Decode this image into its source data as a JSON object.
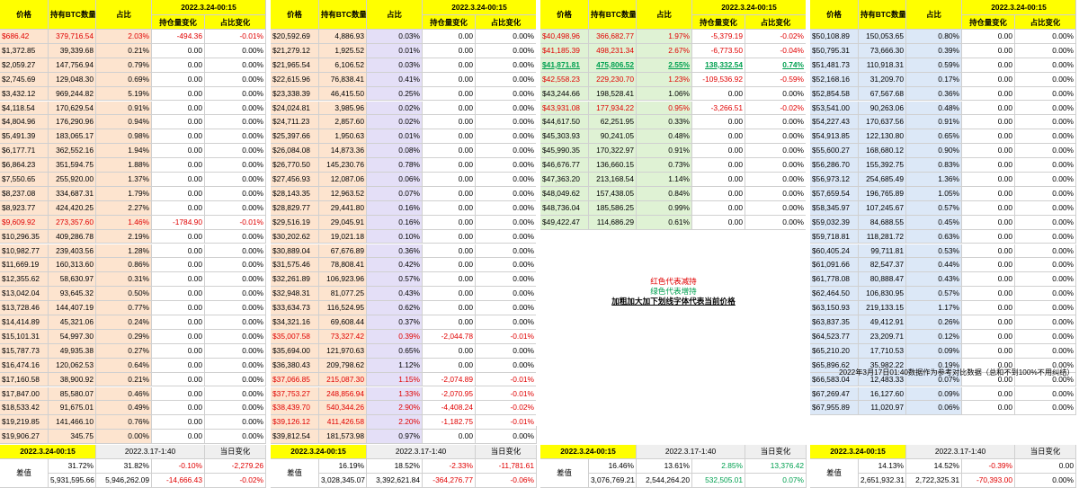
{
  "colors": {
    "header_yellow": "#ffff00",
    "price_orange": "#fde4cf",
    "ratio_purple": "#e4dff7",
    "price_green": "#dff2d4",
    "price_blue": "#dce8f7",
    "footer_gray": "#efefef",
    "text_red": "#e00000",
    "text_green": "#00a050"
  },
  "headers": {
    "price": "价格",
    "btc": "持有BTC数量",
    "ratio": "占比",
    "date": "2022.3.24-00:15",
    "chg_hold": "持仓量变化",
    "chg_ratio": "占比变化"
  },
  "blocks": [
    {
      "rows": [
        [
          "$686.42",
          "379,716.54",
          "2.03%",
          "-494.36",
          "-0.01%",
          "red"
        ],
        [
          "$1,372.85",
          "39,339.68",
          "0.21%",
          "0.00",
          "0.00%",
          ""
        ],
        [
          "$2,059.27",
          "147,756.94",
          "0.79%",
          "0.00",
          "0.00%",
          ""
        ],
        [
          "$2,745.69",
          "129,048.30",
          "0.69%",
          "0.00",
          "0.00%",
          ""
        ],
        [
          "$3,432.12",
          "969,244.82",
          "5.19%",
          "0.00",
          "0.00%",
          ""
        ],
        [
          "$4,118.54",
          "170,629.54",
          "0.91%",
          "0.00",
          "0.00%",
          ""
        ],
        [
          "$4,804.96",
          "176,290.96",
          "0.94%",
          "0.00",
          "0.00%",
          ""
        ],
        [
          "$5,491.39",
          "183,065.17",
          "0.98%",
          "0.00",
          "0.00%",
          ""
        ],
        [
          "$6,177.71",
          "362,552.16",
          "1.94%",
          "0.00",
          "0.00%",
          ""
        ],
        [
          "$6,864.23",
          "351,594.75",
          "1.88%",
          "0.00",
          "0.00%",
          ""
        ],
        [
          "$7,550.65",
          "255,920.00",
          "1.37%",
          "0.00",
          "0.00%",
          ""
        ],
        [
          "$8,237.08",
          "334,687.31",
          "1.79%",
          "0.00",
          "0.00%",
          ""
        ],
        [
          "$8,923.77",
          "424,420.25",
          "2.27%",
          "0.00",
          "0.00%",
          ""
        ],
        [
          "$9,609.92",
          "273,357.60",
          "1.46%",
          "-1784.90",
          "-0.01%",
          "red"
        ],
        [
          "$10,296.35",
          "409,286.78",
          "2.19%",
          "0.00",
          "0.00%",
          ""
        ],
        [
          "$10,982.77",
          "239,403.56",
          "1.28%",
          "0.00",
          "0.00%",
          ""
        ],
        [
          "$11,669.19",
          "160,313.60",
          "0.86%",
          "0.00",
          "0.00%",
          ""
        ],
        [
          "$12,355.62",
          "58,630.97",
          "0.31%",
          "0.00",
          "0.00%",
          ""
        ],
        [
          "$13,042.04",
          "93,645.32",
          "0.50%",
          "0.00",
          "0.00%",
          ""
        ],
        [
          "$13,728.46",
          "144,407.19",
          "0.77%",
          "0.00",
          "0.00%",
          ""
        ],
        [
          "$14,414.89",
          "45,321.06",
          "0.24%",
          "0.00",
          "0.00%",
          ""
        ],
        [
          "$15,101.31",
          "54,997.30",
          "0.29%",
          "0.00",
          "0.00%",
          ""
        ],
        [
          "$15,787.73",
          "49,935.38",
          "0.27%",
          "0.00",
          "0.00%",
          ""
        ],
        [
          "$16,474.16",
          "120,062.53",
          "0.64%",
          "0.00",
          "0.00%",
          ""
        ],
        [
          "$17,160.58",
          "38,900.92",
          "0.21%",
          "0.00",
          "0.00%",
          ""
        ],
        [
          "$17,847.00",
          "85,580.07",
          "0.46%",
          "0.00",
          "0.00%",
          ""
        ],
        [
          "$18,533.42",
          "91,675.01",
          "0.49%",
          "0.00",
          "0.00%",
          ""
        ],
        [
          "$19,219.85",
          "141,466.10",
          "0.76%",
          "0.00",
          "0.00%",
          ""
        ],
        [
          "$19,906.27",
          "345.75",
          "0.00%",
          "0.00",
          "0.00%",
          ""
        ]
      ],
      "footer": {
        "date1": "2022.3.24-00:15",
        "date2": "2022.3.17-1:40",
        "daily": "当日变化",
        "diff": "差值",
        "r1a": "31.72%",
        "r1b": "31.82%",
        "r1c": "-0.10%",
        "r1d": "-2,279.26",
        "r2a": "5,931,595.66",
        "r2b": "5,946,262.09",
        "r2c": "-14,666.43",
        "r2d": "-0.02%"
      }
    },
    {
      "rows": [
        [
          "$20,592.69",
          "4,886.93",
          "0.03%",
          "0.00",
          "0.00%",
          ""
        ],
        [
          "$21,279.12",
          "1,925.52",
          "0.01%",
          "0.00",
          "0.00%",
          ""
        ],
        [
          "$21,965.54",
          "6,106.52",
          "0.03%",
          "0.00",
          "0.00%",
          ""
        ],
        [
          "$22,615.96",
          "76,838.41",
          "0.41%",
          "0.00",
          "0.00%",
          ""
        ],
        [
          "$23,338.39",
          "46,415.50",
          "0.25%",
          "0.00",
          "0.00%",
          ""
        ],
        [
          "$24,024.81",
          "3,985.96",
          "0.02%",
          "0.00",
          "0.00%",
          ""
        ],
        [
          "$24,711.23",
          "2,857.60",
          "0.02%",
          "0.00",
          "0.00%",
          ""
        ],
        [
          "$25,397.66",
          "1,950.63",
          "0.01%",
          "0.00",
          "0.00%",
          ""
        ],
        [
          "$26,084.08",
          "14,873.36",
          "0.08%",
          "0.00",
          "0.00%",
          ""
        ],
        [
          "$26,770.50",
          "145,230.76",
          "0.78%",
          "0.00",
          "0.00%",
          ""
        ],
        [
          "$27,456.93",
          "12,087.06",
          "0.06%",
          "0.00",
          "0.00%",
          ""
        ],
        [
          "$28,143.35",
          "12,963.52",
          "0.07%",
          "0.00",
          "0.00%",
          ""
        ],
        [
          "$28,829.77",
          "29,441.80",
          "0.16%",
          "0.00",
          "0.00%",
          ""
        ],
        [
          "$29,516.19",
          "29,045.91",
          "0.16%",
          "0.00",
          "0.00%",
          ""
        ],
        [
          "$30,202.62",
          "19,021.18",
          "0.10%",
          "0.00",
          "0.00%",
          ""
        ],
        [
          "$30,889.04",
          "67,676.89",
          "0.36%",
          "0.00",
          "0.00%",
          ""
        ],
        [
          "$31,575.46",
          "78,808.41",
          "0.42%",
          "0.00",
          "0.00%",
          ""
        ],
        [
          "$32,261.89",
          "106,923.96",
          "0.57%",
          "0.00",
          "0.00%",
          ""
        ],
        [
          "$32,948.31",
          "81,077.25",
          "0.43%",
          "0.00",
          "0.00%",
          ""
        ],
        [
          "$33,634.73",
          "116,524.95",
          "0.62%",
          "0.00",
          "0.00%",
          ""
        ],
        [
          "$34,321.16",
          "69,608.44",
          "0.37%",
          "0.00",
          "0.00%",
          ""
        ],
        [
          "$35,007.58",
          "73,327.42",
          "0.39%",
          "-2,044.78",
          "-0.01%",
          "red"
        ],
        [
          "$35,694.00",
          "121,970.63",
          "0.65%",
          "0.00",
          "0.00%",
          ""
        ],
        [
          "$36,380.43",
          "209,798.62",
          "1.12%",
          "0.00",
          "0.00%",
          ""
        ],
        [
          "$37,066.85",
          "215,087.30",
          "1.15%",
          "-2,074.89",
          "-0.01%",
          "red"
        ],
        [
          "$37,753.27",
          "248,856.94",
          "1.33%",
          "-2,070.95",
          "-0.01%",
          "red"
        ],
        [
          "$38,439.70",
          "540,344.26",
          "2.90%",
          "-4,408.24",
          "-0.02%",
          "red"
        ],
        [
          "$39,126.12",
          "411,426.58",
          "2.20%",
          "-1,182.75",
          "-0.01%",
          "red"
        ],
        [
          "$39,812.54",
          "181,573.98",
          "0.97%",
          "0.00",
          "0.00%",
          ""
        ]
      ],
      "footer": {
        "date1": "2022.3.24-00:15",
        "date2": "2022.3.17-1:40",
        "daily": "当日变化",
        "diff": "差值",
        "r1a": "16.19%",
        "r1b": "18.52%",
        "r1c": "-2.33%",
        "r1d": "-11,781.61",
        "r2a": "3,028,345.07",
        "r2b": "3,392,621.84",
        "r2c": "-364,276.77",
        "r2d": "-0.06%"
      }
    },
    {
      "rows": [
        [
          "$40,498.96",
          "366,682.77",
          "1.97%",
          "-5,379.19",
          "-0.02%",
          "red"
        ],
        [
          "$41,185.39",
          "498,231.34",
          "2.67%",
          "-6,773.50",
          "-0.04%",
          "red"
        ],
        [
          "$41,871.81",
          "475,806.52",
          "2.55%",
          "138,332.54",
          "0.74%",
          "greenbold"
        ],
        [
          "$42,558.23",
          "229,230.70",
          "1.23%",
          "-109,536.92",
          "-0.59%",
          "red"
        ],
        [
          "$43,244.66",
          "198,528.41",
          "1.06%",
          "0.00",
          "0.00%",
          ""
        ],
        [
          "$43,931.08",
          "177,934.22",
          "0.95%",
          "-3,266.51",
          "-0.02%",
          "red"
        ],
        [
          "$44,617.50",
          "62,251.95",
          "0.33%",
          "0.00",
          "0.00%",
          ""
        ],
        [
          "$45,303.93",
          "90,241.05",
          "0.48%",
          "0.00",
          "0.00%",
          ""
        ],
        [
          "$45,990.35",
          "170,322.97",
          "0.91%",
          "0.00",
          "0.00%",
          ""
        ],
        [
          "$46,676.77",
          "136,660.15",
          "0.73%",
          "0.00",
          "0.00%",
          ""
        ],
        [
          "$47,363.20",
          "213,168.54",
          "1.14%",
          "0.00",
          "0.00%",
          ""
        ],
        [
          "$48,049.62",
          "157,438.05",
          "0.84%",
          "0.00",
          "0.00%",
          ""
        ],
        [
          "$48,736.04",
          "185,586.25",
          "0.99%",
          "0.00",
          "0.00%",
          ""
        ],
        [
          "$49,422.47",
          "114,686.29",
          "0.61%",
          "0.00",
          "0.00%",
          ""
        ]
      ],
      "legend": {
        "line1": "红色代表减持",
        "line2": "绿色代表增持",
        "line3": "加粗加大加下划线字体代表当前价格"
      },
      "footer": {
        "date1": "2022.3.24-00:15",
        "date2": "2022.3.17-1:40",
        "daily": "当日变化",
        "diff": "差值",
        "r1a": "16.46%",
        "r1b": "13.61%",
        "r1c": "2.85%",
        "r1d": "13,376.42",
        "r2a": "3,076,769.21",
        "r2b": "2,544,264.20",
        "r2c": "532,505.01",
        "r2d": "0.07%"
      }
    },
    {
      "rows": [
        [
          "$50,108.89",
          "150,053.65",
          "0.80%",
          "0.00",
          "0.00%",
          ""
        ],
        [
          "$50,795.31",
          "73,666.30",
          "0.39%",
          "0.00",
          "0.00%",
          ""
        ],
        [
          "$51,481.73",
          "110,918.31",
          "0.59%",
          "0.00",
          "0.00%",
          ""
        ],
        [
          "$52,168.16",
          "31,209.70",
          "0.17%",
          "0.00",
          "0.00%",
          ""
        ],
        [
          "$52,854.58",
          "67,567.68",
          "0.36%",
          "0.00",
          "0.00%",
          ""
        ],
        [
          "$53,541.00",
          "90,263.06",
          "0.48%",
          "0.00",
          "0.00%",
          ""
        ],
        [
          "$54,227.43",
          "170,637.56",
          "0.91%",
          "0.00",
          "0.00%",
          ""
        ],
        [
          "$54,913.85",
          "122,130.80",
          "0.65%",
          "0.00",
          "0.00%",
          ""
        ],
        [
          "$55,600.27",
          "168,680.12",
          "0.90%",
          "0.00",
          "0.00%",
          ""
        ],
        [
          "$56,286.70",
          "155,392.75",
          "0.83%",
          "0.00",
          "0.00%",
          ""
        ],
        [
          "$56,973.12",
          "254,685.49",
          "1.36%",
          "0.00",
          "0.00%",
          ""
        ],
        [
          "$57,659.54",
          "196,765.89",
          "1.05%",
          "0.00",
          "0.00%",
          ""
        ],
        [
          "$58,345.97",
          "107,245.67",
          "0.57%",
          "0.00",
          "0.00%",
          ""
        ],
        [
          "$59,032.39",
          "84,688.55",
          "0.45%",
          "0.00",
          "0.00%",
          ""
        ],
        [
          "$59,718.81",
          "118,281.72",
          "0.63%",
          "0.00",
          "0.00%",
          ""
        ],
        [
          "$60,405.24",
          "99,711.81",
          "0.53%",
          "0.00",
          "0.00%",
          ""
        ],
        [
          "$61,091.66",
          "82,547.37",
          "0.44%",
          "0.00",
          "0.00%",
          ""
        ],
        [
          "$61,778.08",
          "80,888.47",
          "0.43%",
          "0.00",
          "0.00%",
          ""
        ],
        [
          "$62,464.50",
          "106,830.95",
          "0.57%",
          "0.00",
          "0.00%",
          ""
        ],
        [
          "$63,150.93",
          "219,133.15",
          "1.17%",
          "0.00",
          "0.00%",
          ""
        ],
        [
          "$63,837.35",
          "49,412.91",
          "0.26%",
          "0.00",
          "0.00%",
          ""
        ],
        [
          "$64,523.77",
          "23,209.71",
          "0.12%",
          "0.00",
          "0.00%",
          ""
        ],
        [
          "$65,210.20",
          "17,710.53",
          "0.09%",
          "0.00",
          "0.00%",
          ""
        ],
        [
          "$65,896.62",
          "35,982.22",
          "0.19%",
          "0.00",
          "0.00%",
          ""
        ],
        [
          "$66,583.04",
          "12,483.33",
          "0.07%",
          "0.00",
          "0.00%",
          ""
        ],
        [
          "$67,269.47",
          "16,127.60",
          "0.09%",
          "0.00",
          "0.00%",
          ""
        ],
        [
          "$67,955.89",
          "11,020.97",
          "0.06%",
          "0.00",
          "0.00%",
          ""
        ]
      ],
      "note": "2022年3月17日01:40数据作为参考对比数据（总和不到100%不用纠结）",
      "footer": {
        "date1": "2022.3.24-00:15",
        "date2": "2022.3.17-1:40",
        "daily": "当日变化",
        "diff": "差值",
        "r1a": "14.13%",
        "r1b": "14.52%",
        "r1c": "-0.39%",
        "r1d": "0.00",
        "r2a": "2,651,932.31",
        "r2b": "2,722,325.31",
        "r2c": "-70,393.00",
        "r2d": "0.00%"
      }
    }
  ]
}
